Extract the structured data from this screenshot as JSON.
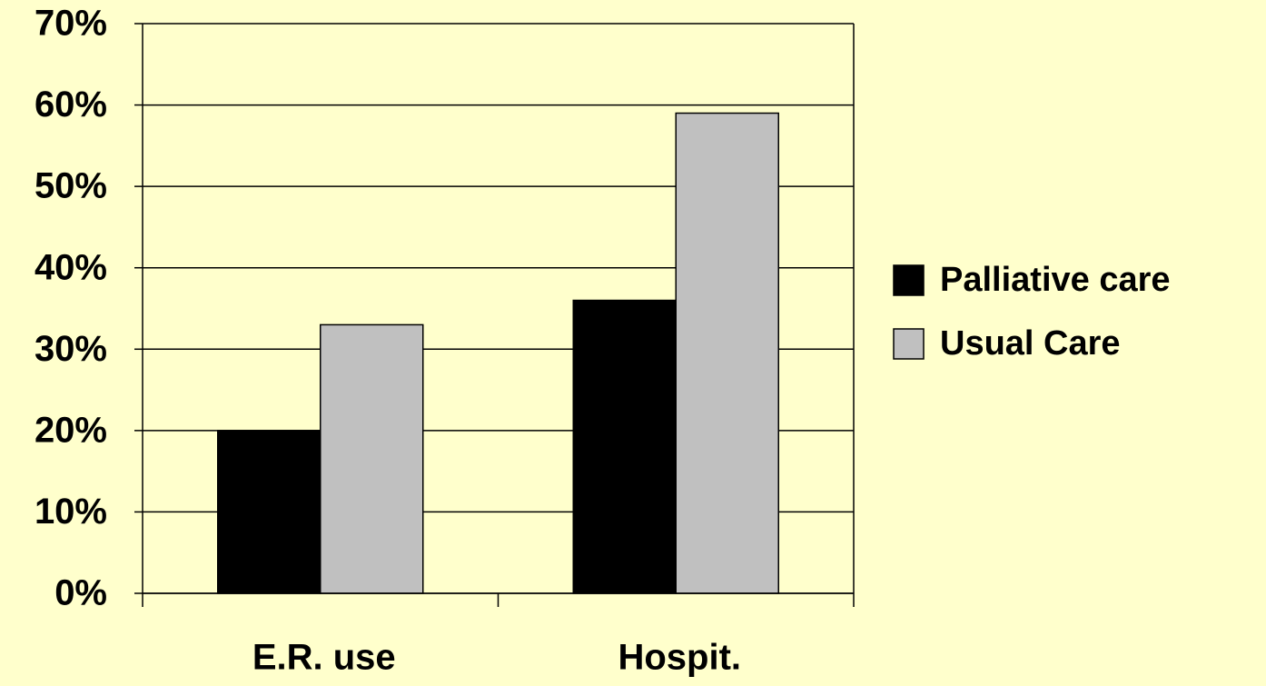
{
  "chart_data": {
    "type": "bar",
    "categories": [
      "E.R. use",
      "Hospit."
    ],
    "series": [
      {
        "name": "Palliative care",
        "color": "#000000",
        "values": [
          20,
          36
        ]
      },
      {
        "name": "Usual Care",
        "color": "#c0c0c0",
        "values": [
          33,
          59
        ]
      }
    ],
    "ylim": [
      0,
      70
    ],
    "yticks": [
      {
        "value": 0,
        "label": "0%"
      },
      {
        "value": 10,
        "label": "10%"
      },
      {
        "value": 20,
        "label": "20%"
      },
      {
        "value": 30,
        "label": "30%"
      },
      {
        "value": 40,
        "label": "40%"
      },
      {
        "value": 50,
        "label": "50%"
      },
      {
        "value": 60,
        "label": "60%"
      },
      {
        "value": 70,
        "label": "70%"
      }
    ],
    "grid": true,
    "legend": "right"
  }
}
